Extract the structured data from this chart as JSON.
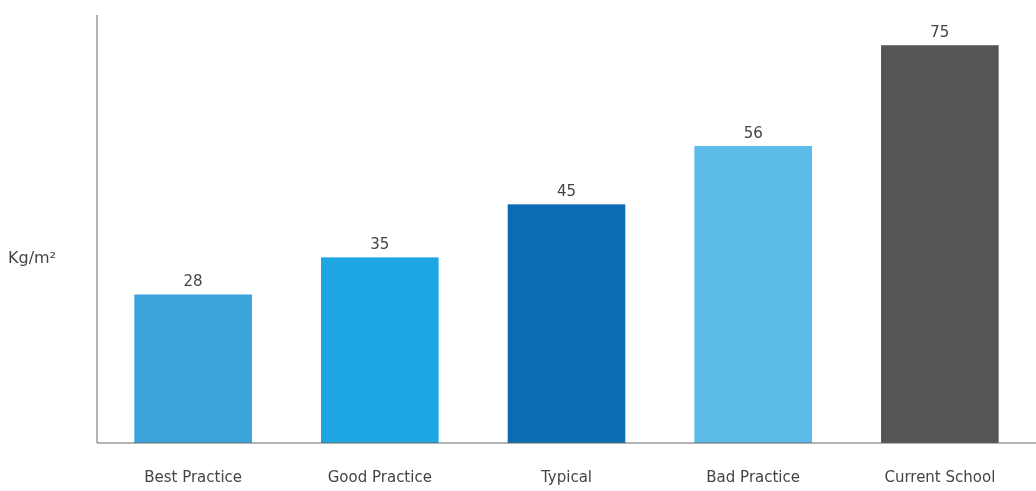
{
  "chart_data": {
    "type": "bar",
    "ylabel": "Kg/m²",
    "categories": [
      "Best Practice",
      "Good Practice",
      "Typical",
      "Bad Practice",
      "Current School"
    ],
    "values": [
      28,
      35,
      45,
      56,
      75
    ],
    "colors": [
      "#3ba2dc",
      "#1ea6e2",
      "#0a6db3",
      "#5dbbea",
      "#555555"
    ],
    "data_labels": true
  }
}
